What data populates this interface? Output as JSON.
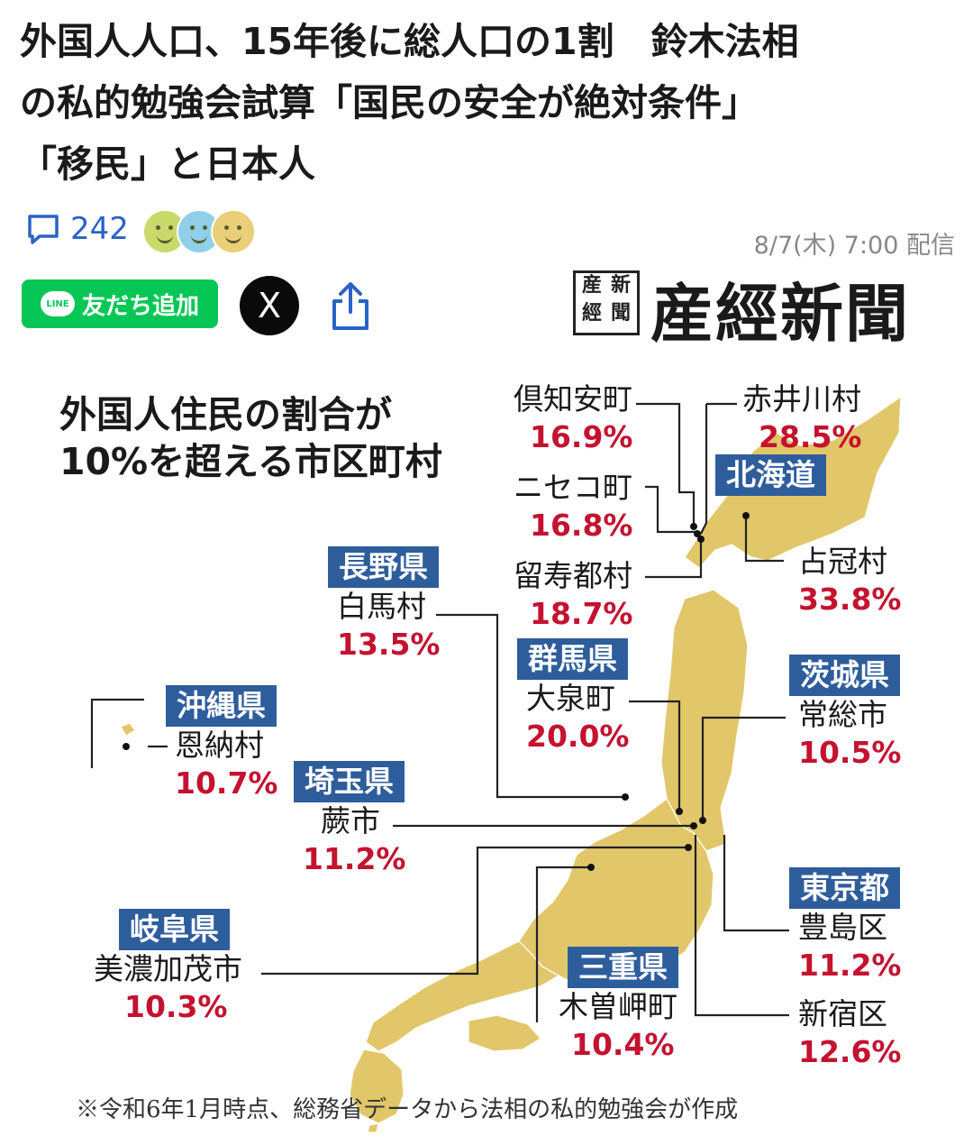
{
  "article": {
    "title_line1": "外国人人口、15年後に総人口の1割　鈴木法相",
    "title_line2": "の私的勉強会試算「国民の安全が絶対条件」",
    "title_line3": "「移民」と日本人",
    "comment_count": "242",
    "date": "8/7(木) 7:00 配信"
  },
  "share": {
    "line_label": "友だち追加",
    "line_logo_text": "LINE",
    "x_label": "X"
  },
  "publisher": {
    "name": "産經新聞",
    "seal": [
      "産",
      "新",
      "經",
      "聞"
    ]
  },
  "infographic": {
    "title_line1": "外国人住民の割合が",
    "title_line2": "10%を超える市区町村",
    "footnote": "※令和6年1月時点、総務省データから法相の私的勉強会が作成",
    "callouts": {
      "kutchan": {
        "place": "倶知安町",
        "pct": "16.9%"
      },
      "niseko": {
        "place": "ニセコ町",
        "pct": "16.8%"
      },
      "rusutsu": {
        "place": "留寿都村",
        "pct": "18.7%"
      },
      "akaigawa": {
        "place": "赤井川村",
        "pct": "28.5%"
      },
      "hokkaido": {
        "pref": "北海道"
      },
      "shimukappu": {
        "place": "占冠村",
        "pct": "33.8%"
      },
      "hakuba": {
        "pref": "長野県",
        "place": "白馬村",
        "pct": "13.5%"
      },
      "oizumi": {
        "pref": "群馬県",
        "place": "大泉町",
        "pct": "20.0%"
      },
      "joso": {
        "pref": "茨城県",
        "place": "常総市",
        "pct": "10.5%"
      },
      "onna": {
        "pref": "沖縄県",
        "place": "恩納村",
        "pct": "10.7%"
      },
      "warabi": {
        "pref": "埼玉県",
        "place": "蕨市",
        "pct": "11.2%"
      },
      "minokamo": {
        "pref": "岐阜県",
        "place": "美濃加茂市",
        "pct": "10.3%"
      },
      "kisosaki": {
        "pref": "三重県",
        "place": "木曽岬町",
        "pct": "10.4%"
      },
      "toshima": {
        "pref": "東京都",
        "place": "豊島区",
        "pct": "11.2%"
      },
      "shinjuku": {
        "place": "新宿区",
        "pct": "12.6%"
      }
    }
  },
  "colors": {
    "accent_blue": "#2e5d9c",
    "percent_red": "#c4122f",
    "map_fill": "#e2c76a",
    "line_green": "#06c755"
  }
}
